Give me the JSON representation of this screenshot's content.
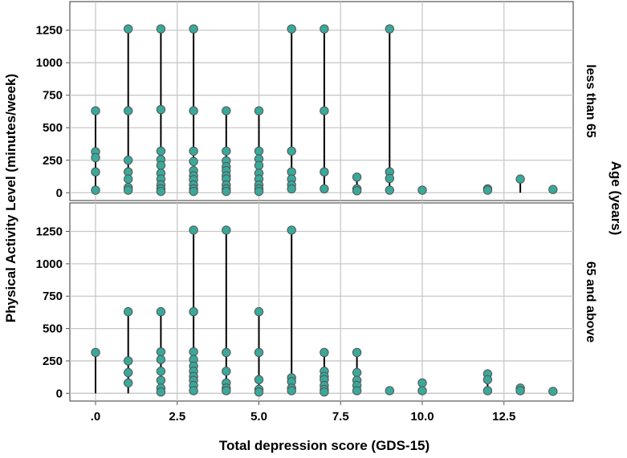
{
  "chart_data": {
    "type": "scatter",
    "style": "dot-and-drop-line (points with vertical lines from 0 to the highest value)",
    "title": "",
    "xlabel": "Total depression score (GDS-15)",
    "ylabel": "Physical Activity Level (minutes/week)",
    "facet_label": "Age (years)",
    "xlim": [
      -1.2,
      14.7
    ],
    "ylim": [
      -60,
      1470
    ],
    "x_ticks": [
      {
        "value": 0,
        "label": ".0"
      },
      {
        "value": 2.5,
        "label": "2.5"
      },
      {
        "value": 5,
        "label": "5.0"
      },
      {
        "value": 7.5,
        "label": "7.5"
      },
      {
        "value": 10,
        "label": "10.0"
      },
      {
        "value": 12.5,
        "label": "12.5"
      }
    ],
    "y_ticks": [
      {
        "value": 0,
        "label": "0"
      },
      {
        "value": 250,
        "label": "250"
      },
      {
        "value": 500,
        "label": "500"
      },
      {
        "value": 750,
        "label": "750"
      },
      {
        "value": 1000,
        "label": "1000"
      },
      {
        "value": 1250,
        "label": "1250"
      }
    ],
    "grid": true,
    "marker_color": "#3aa89a",
    "marker_edge_color": "#555555",
    "line_color": "#000000",
    "panels": [
      {
        "label": "less than 65",
        "points": [
          {
            "x": 0,
            "values": [
              630,
              315,
              270,
              160,
              20
            ]
          },
          {
            "x": 1,
            "values": [
              1260,
              630,
              250,
              160,
              105,
              40,
              20
            ]
          },
          {
            "x": 2,
            "values": [
              1260,
              640,
              320,
              255,
              210,
              150,
              105,
              60,
              30,
              10
            ]
          },
          {
            "x": 3,
            "values": [
              1260,
              630,
              320,
              240,
              170,
              130,
              100,
              60,
              30,
              10
            ]
          },
          {
            "x": 4,
            "values": [
              630,
              320,
              245,
              200,
              170,
              130,
              105,
              60,
              30,
              10
            ]
          },
          {
            "x": 5,
            "values": [
              630,
              320,
              260,
              210,
              150,
              105,
              60,
              30,
              10
            ]
          },
          {
            "x": 6,
            "values": [
              1260,
              320,
              160,
              105,
              60,
              30
            ]
          },
          {
            "x": 7,
            "values": [
              1260,
              630,
              160,
              30
            ]
          },
          {
            "x": 8,
            "values": [
              120,
              30,
              15
            ]
          },
          {
            "x": 9,
            "values": [
              1260,
              160,
              110,
              20
            ]
          },
          {
            "x": 10,
            "values": [
              20
            ]
          },
          {
            "x": 12,
            "values": [
              30,
              20
            ]
          },
          {
            "x": 13,
            "values": [
              105
            ]
          },
          {
            "x": 14,
            "values": [
              25
            ]
          }
        ]
      },
      {
        "label": "65 and above",
        "points": [
          {
            "x": 0,
            "values": [
              315
            ]
          },
          {
            "x": 1,
            "values": [
              630,
              250,
              160,
              80
            ]
          },
          {
            "x": 2,
            "values": [
              630,
              320,
              260,
              170,
              100,
              40,
              10
            ]
          },
          {
            "x": 3,
            "values": [
              1260,
              630,
              320,
              260,
              210,
              170,
              130,
              100,
              60,
              20
            ]
          },
          {
            "x": 4,
            "values": [
              1260,
              315,
              170,
              80,
              40,
              20
            ]
          },
          {
            "x": 5,
            "values": [
              630,
              315,
              105,
              30,
              10
            ]
          },
          {
            "x": 6,
            "values": [
              1260,
              120,
              90,
              40,
              20
            ]
          },
          {
            "x": 7,
            "values": [
              315,
              170,
              130,
              105,
              60,
              30,
              10
            ]
          },
          {
            "x": 8,
            "values": [
              315,
              160,
              100,
              60,
              20
            ]
          },
          {
            "x": 9,
            "values": [
              20
            ]
          },
          {
            "x": 10,
            "values": [
              80,
              20
            ]
          },
          {
            "x": 12,
            "values": [
              150,
              105,
              20
            ]
          },
          {
            "x": 13,
            "values": [
              40,
              20
            ]
          },
          {
            "x": 14,
            "values": [
              15
            ]
          }
        ]
      }
    ]
  }
}
